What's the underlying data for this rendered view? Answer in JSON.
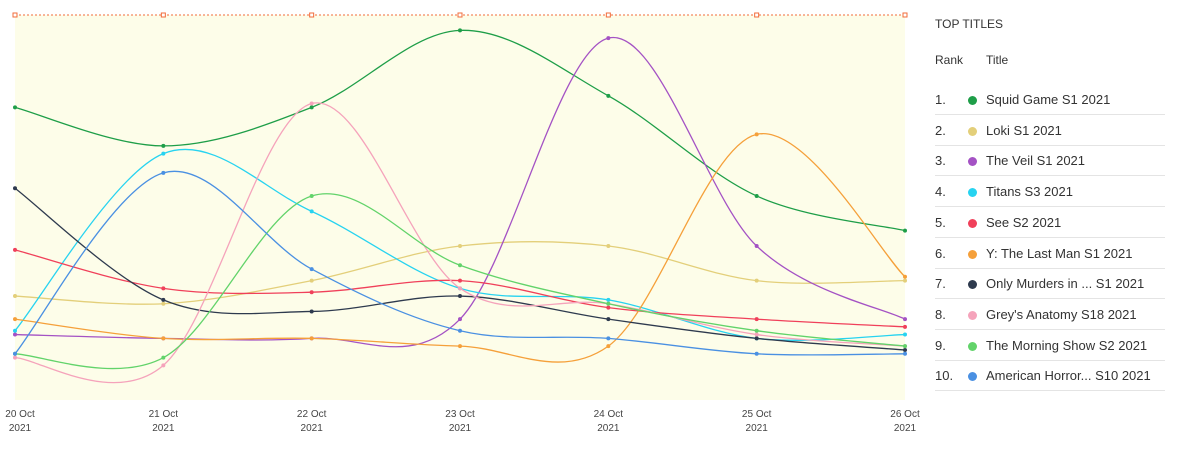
{
  "chart_data": {
    "type": "line",
    "categories": [
      "20 Oct 2021",
      "21 Oct 2021",
      "22 Oct 2021",
      "23 Oct 2021",
      "24 Oct 2021",
      "25 Oct 2021",
      "26 Oct 2021"
    ],
    "ylim": [
      0,
      100
    ],
    "legend_title": "TOP TITLES",
    "legend_headers": [
      "Rank",
      "Title"
    ],
    "ranks": [
      "1.",
      "2.",
      "3.",
      "4.",
      "5.",
      "6.",
      "7.",
      "8.",
      "9.",
      "10."
    ],
    "series": [
      {
        "name": "Squid Game S1 2021",
        "color": "#1e9e48",
        "values": [
          76,
          66,
          76,
          96,
          79,
          53,
          44
        ]
      },
      {
        "name": "Loki S1 2021",
        "color": "#e3cf7a",
        "values": [
          27,
          25,
          31,
          40,
          40,
          31,
          31
        ]
      },
      {
        "name": "The Veil S1 2021",
        "color": "#a452c4",
        "values": [
          17,
          16,
          16,
          21,
          94,
          40,
          21
        ]
      },
      {
        "name": "Titans S3 2021",
        "color": "#27d3f0",
        "values": [
          18,
          64,
          49,
          29,
          26,
          16,
          17
        ]
      },
      {
        "name": "See S2 2021",
        "color": "#f0405a",
        "values": [
          39,
          29,
          28,
          31,
          24,
          21,
          19
        ]
      },
      {
        "name": "Y: The Last Man S1 2021",
        "color": "#f5a03a",
        "values": [
          21,
          16,
          16,
          14,
          14,
          69,
          32
        ]
      },
      {
        "name": "Only Murders in ... S1 2021",
        "color": "#2e3a4e",
        "values": [
          55,
          26,
          23,
          27,
          21,
          16,
          13
        ]
      },
      {
        "name": "Grey's Anatomy S18 2021",
        "color": "#f5a3bb",
        "values": [
          11,
          9,
          77,
          29,
          25,
          17,
          14
        ]
      },
      {
        "name": "The Morning Show S2 2021",
        "color": "#62d36a",
        "values": [
          12,
          11,
          53,
          35,
          25,
          18,
          14
        ]
      },
      {
        "name": "American Horror... S10 2021",
        "color": "#4a90e2",
        "values": [
          12,
          59,
          34,
          18,
          16,
          12,
          12
        ]
      }
    ]
  }
}
